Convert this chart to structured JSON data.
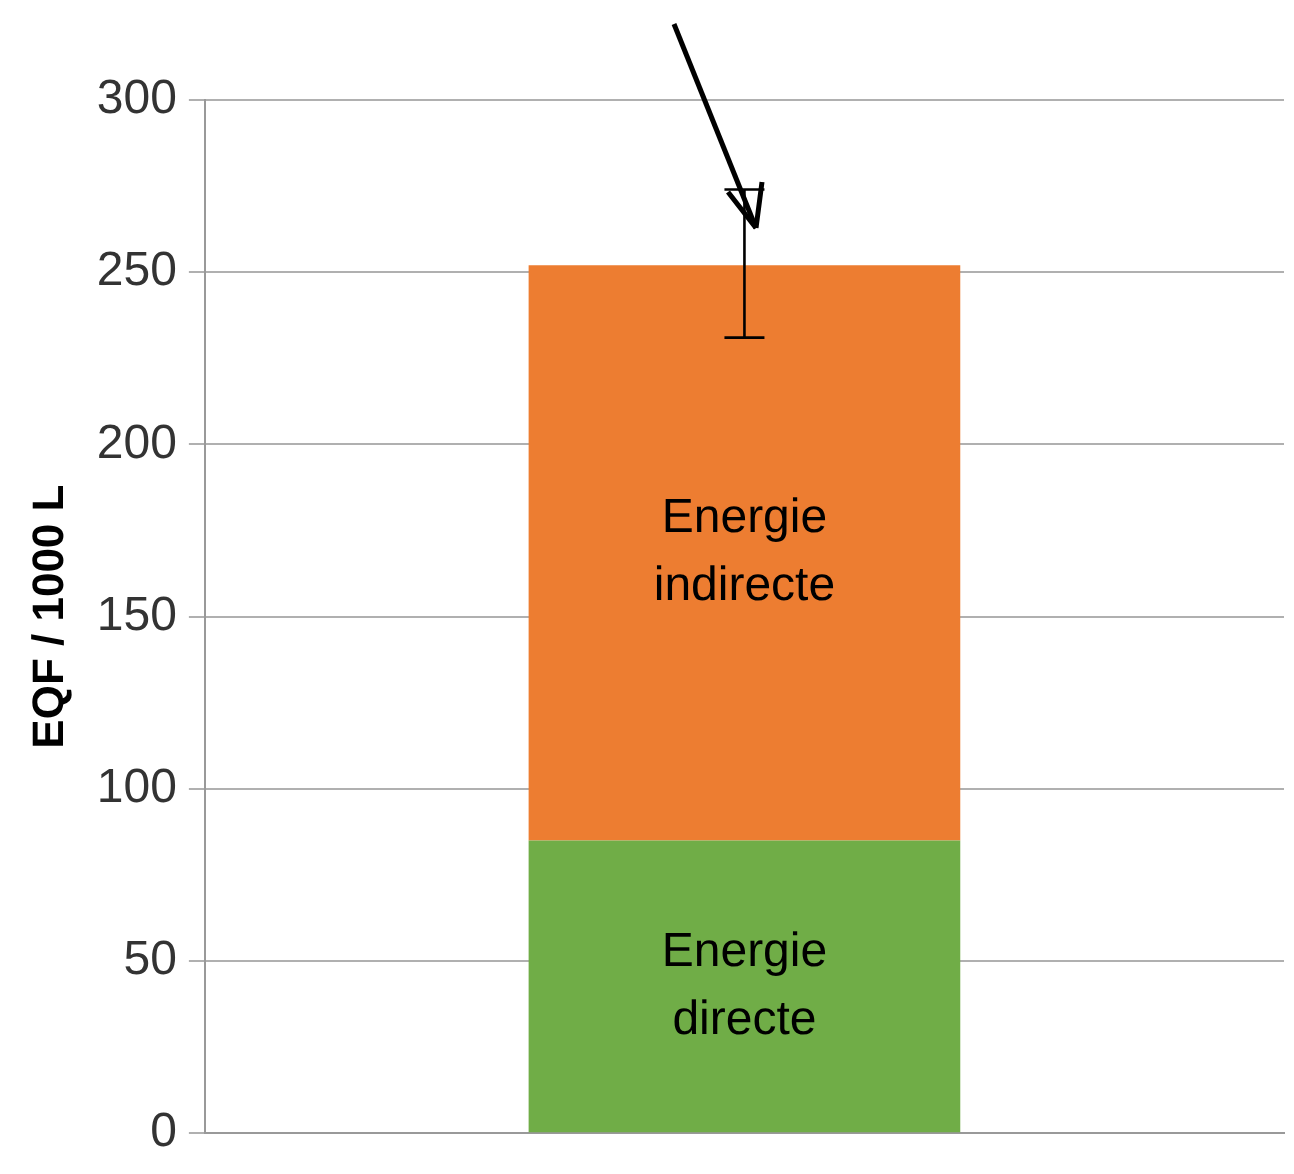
{
  "chart_data": {
    "type": "bar",
    "stacked": true,
    "ylabel": "EQF / 1000 L",
    "categories": [
      null
    ],
    "series": [
      {
        "name": "Energie directe",
        "color": "#70ad47",
        "values": [
          85
        ]
      },
      {
        "name": "Energie indirecte",
        "color": "#ed7d31",
        "values": [
          167
        ],
        "errors": [
          [
            231,
            274
          ]
        ]
      }
    ],
    "ylim": [
      0,
      300
    ],
    "yticks": [
      0,
      50,
      100,
      150,
      200,
      250,
      300
    ],
    "grid": "y",
    "legend": false
  }
}
